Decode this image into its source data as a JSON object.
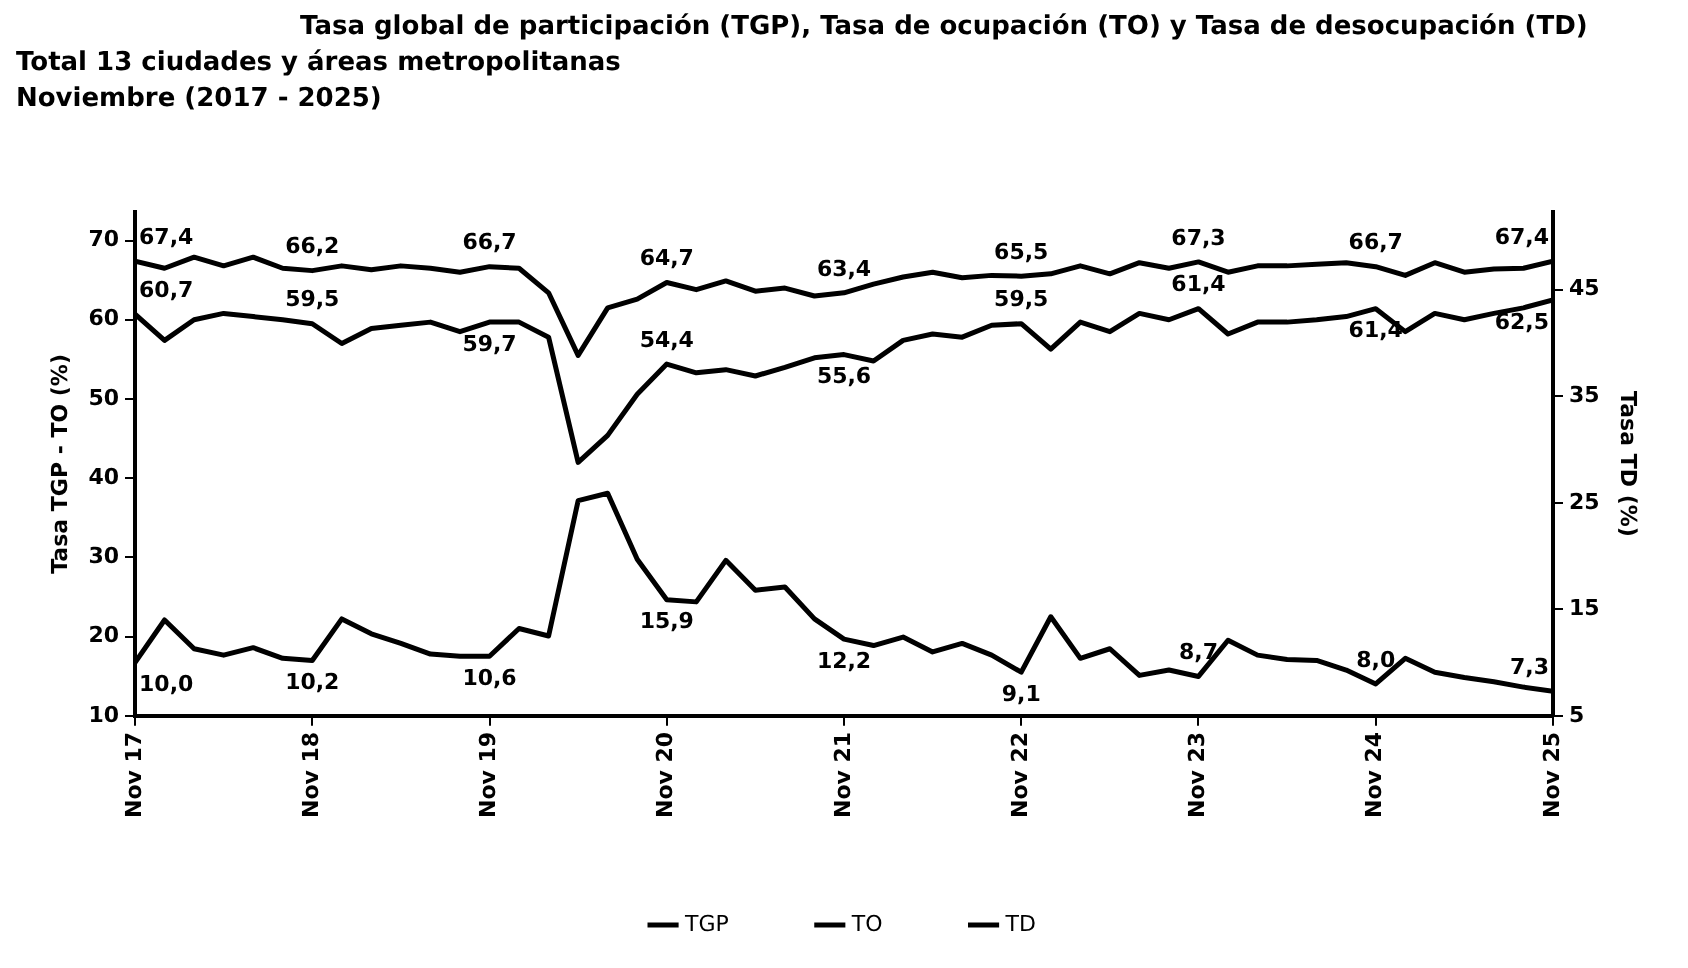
{
  "chart_data": {
    "type": "line",
    "title": "Tasa global de participación (TGP), Tasa de ocupación (TO) y Tasa de desocupación (TD)",
    "subtitle": "Total 13 ciudades y áreas metropolitanas\nNoviembre (2017 - 2025)",
    "ylabel": "Tasa TGP - TO (%)",
    "y2label": "Tasa TD (%)",
    "x": [
      "2017-11",
      "2018-01",
      "2018-03",
      "2018-05",
      "2018-07",
      "2018-09",
      "2018-11",
      "2019-01",
      "2019-03",
      "2019-05",
      "2019-07",
      "2019-09",
      "2019-11",
      "2020-01",
      "2020-03",
      "2020-05",
      "2020-07",
      "2020-09",
      "2020-11",
      "2021-01",
      "2021-03",
      "2021-05",
      "2021-07",
      "2021-09",
      "2021-11",
      "2022-01",
      "2022-03",
      "2022-05",
      "2022-07",
      "2022-09",
      "2022-11",
      "2023-01",
      "2023-03",
      "2023-05",
      "2023-07",
      "2023-09",
      "2023-11",
      "2024-01",
      "2024-03",
      "2024-05",
      "2024-07",
      "2024-09",
      "2024-11",
      "2025-01",
      "2025-03",
      "2025-05",
      "2025-07",
      "2025-09",
      "2025-11"
    ],
    "series": [
      {
        "name": "TGP",
        "color": "#000000",
        "axis": "y",
        "values": [
          67.4,
          66.5,
          67.9,
          66.8,
          67.9,
          66.5,
          66.2,
          66.8,
          66.3,
          66.8,
          66.5,
          66.0,
          66.7,
          66.5,
          63.4,
          55.5,
          61.5,
          62.6,
          64.7,
          63.8,
          64.9,
          63.6,
          64.0,
          63.0,
          63.4,
          64.5,
          65.4,
          66.0,
          65.3,
          65.6,
          65.5,
          65.8,
          66.8,
          65.8,
          67.2,
          66.5,
          67.3,
          66.0,
          66.8,
          66.8,
          67.0,
          67.2,
          66.7,
          65.6,
          67.2,
          66.0,
          66.4,
          66.5,
          67.4
        ],
        "value_labels": [
          "67,4",
          null,
          null,
          null,
          null,
          null,
          "66,2",
          null,
          null,
          null,
          null,
          null,
          "66,7",
          null,
          null,
          null,
          null,
          null,
          "64,7",
          null,
          null,
          null,
          null,
          null,
          "63,4",
          null,
          null,
          null,
          null,
          null,
          "65,5",
          null,
          null,
          null,
          null,
          null,
          "67,3",
          null,
          null,
          null,
          null,
          null,
          "66,7",
          null,
          null,
          null,
          null,
          null,
          "67,4"
        ]
      },
      {
        "name": "TO",
        "color": "#000000",
        "axis": "y",
        "values": [
          60.7,
          57.4,
          60.0,
          60.8,
          60.4,
          60.0,
          59.5,
          57.0,
          58.9,
          59.3,
          59.7,
          58.5,
          59.7,
          59.7,
          57.8,
          42.0,
          45.4,
          50.6,
          54.4,
          53.3,
          53.7,
          52.9,
          54.0,
          55.2,
          55.6,
          54.8,
          57.4,
          58.2,
          57.8,
          59.3,
          59.5,
          56.3,
          59.7,
          58.5,
          60.8,
          60.0,
          61.4,
          58.2,
          59.7,
          59.7,
          60.0,
          60.4,
          61.4,
          58.5,
          60.8,
          60.0,
          60.8,
          61.5,
          62.5
        ],
        "value_labels": [
          "60,7",
          null,
          null,
          null,
          null,
          null,
          "59,5",
          null,
          null,
          null,
          null,
          null,
          "59,7",
          null,
          null,
          null,
          null,
          null,
          "54,4",
          null,
          null,
          null,
          null,
          null,
          "55,6",
          null,
          null,
          null,
          null,
          null,
          "59,5",
          null,
          null,
          null,
          null,
          null,
          "61,4",
          null,
          null,
          null,
          null,
          null,
          "61,4",
          null,
          null,
          null,
          null,
          null,
          "62,5"
        ]
      },
      {
        "name": "TD",
        "color": "#000000",
        "axis": "y2",
        "values": [
          10.0,
          14.0,
          11.3,
          10.7,
          11.4,
          10.4,
          10.2,
          14.1,
          12.7,
          11.8,
          10.8,
          10.6,
          10.6,
          13.2,
          12.5,
          25.2,
          25.9,
          19.7,
          15.9,
          15.7,
          19.6,
          16.8,
          17.1,
          14.1,
          12.2,
          11.6,
          12.4,
          11.0,
          11.8,
          10.7,
          9.1,
          14.3,
          10.4,
          11.3,
          8.8,
          9.3,
          8.7,
          12.1,
          10.7,
          10.3,
          10.2,
          9.3,
          8.0,
          10.4,
          9.1,
          8.6,
          8.2,
          7.7,
          7.3
        ],
        "value_labels": [
          "10,0",
          null,
          null,
          null,
          null,
          null,
          "10,2",
          null,
          null,
          null,
          null,
          null,
          "10,6",
          null,
          null,
          null,
          null,
          null,
          "15,9",
          null,
          null,
          null,
          null,
          null,
          "12,2",
          null,
          null,
          null,
          null,
          null,
          "9,1",
          null,
          null,
          null,
          null,
          null,
          "8,7",
          null,
          null,
          null,
          null,
          null,
          "8,0",
          null,
          null,
          null,
          null,
          null,
          "7,3"
        ]
      }
    ],
    "xlim": [
      "2017-11",
      "2025-11"
    ],
    "xticks": [
      {
        "value": "2017-11",
        "label": "Nov 17"
      },
      {
        "value": "2018-11",
        "label": "Nov 18"
      },
      {
        "value": "2019-11",
        "label": "Nov 19"
      },
      {
        "value": "2020-11",
        "label": "Nov 20"
      },
      {
        "value": "2021-11",
        "label": "Nov 21"
      },
      {
        "value": "2022-11",
        "label": "Nov 22"
      },
      {
        "value": "2023-11",
        "label": "Nov 23"
      },
      {
        "value": "2024-11",
        "label": "Nov 24"
      },
      {
        "value": "2025-11",
        "label": "Nov 25"
      }
    ],
    "ylim": [
      10,
      73.6
    ],
    "yticks": [
      10,
      20,
      30,
      40,
      50,
      60,
      70
    ],
    "y2lim": [
      5,
      52.3
    ],
    "y2ticks": [
      5,
      15,
      25,
      35,
      45
    ],
    "grid": false,
    "legend": "bottom",
    "marker": "none",
    "line_style": "solid"
  }
}
